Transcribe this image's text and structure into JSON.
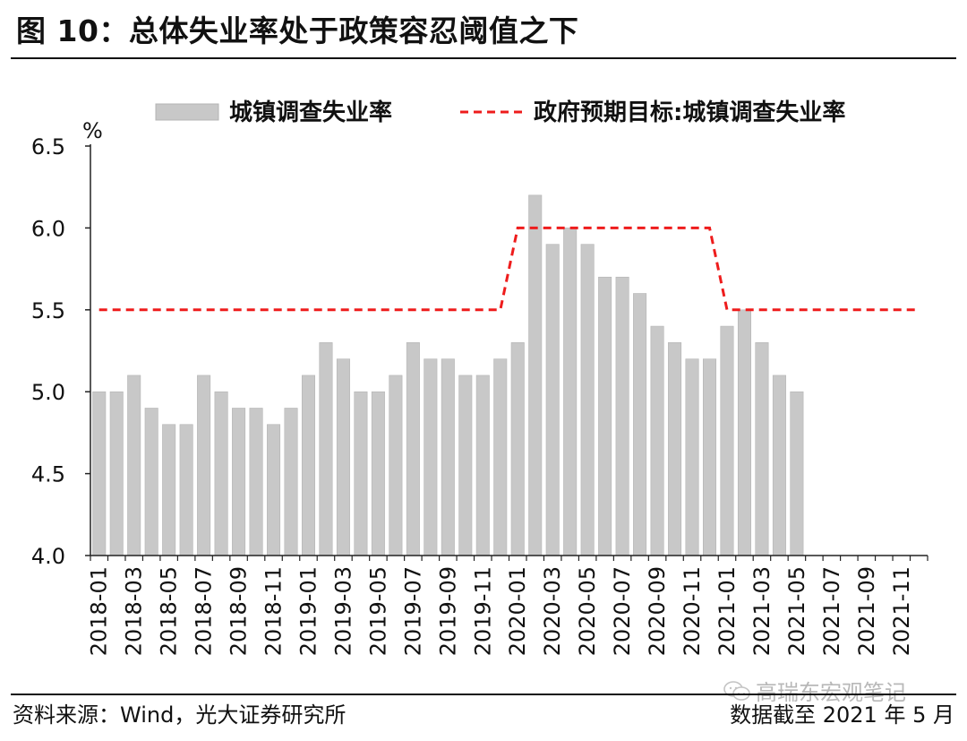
{
  "title": "图 10：总体失业率处于政策容忍阈值之下",
  "source": "资料来源：Wind，光大证券研究所",
  "note": "数据截至 2021 年 5 月",
  "watermark": "高瑞东宏观笔记",
  "colors": {
    "bar": "#c8c8c8",
    "bar_edge": "#b4b4b4",
    "target": "#ee1c1c",
    "axis": "#222222"
  },
  "chart_data": {
    "type": "bar",
    "unit_label": "%",
    "ylim": [
      4.0,
      6.5
    ],
    "yticks": [
      4.0,
      4.5,
      5.0,
      5.5,
      6.0,
      6.5
    ],
    "ytick_labels": [
      "4.0",
      "4.5",
      "5.0",
      "5.5",
      "6.0",
      "6.5"
    ],
    "grid": false,
    "legend_position": "top",
    "categories": [
      "2018-01",
      "2018-02",
      "2018-03",
      "2018-04",
      "2018-05",
      "2018-06",
      "2018-07",
      "2018-08",
      "2018-09",
      "2018-10",
      "2018-11",
      "2018-12",
      "2019-01",
      "2019-02",
      "2019-03",
      "2019-04",
      "2019-05",
      "2019-06",
      "2019-07",
      "2019-08",
      "2019-09",
      "2019-10",
      "2019-11",
      "2019-12",
      "2020-01",
      "2020-02",
      "2020-03",
      "2020-04",
      "2020-05",
      "2020-06",
      "2020-07",
      "2020-08",
      "2020-09",
      "2020-10",
      "2020-11",
      "2020-12",
      "2021-01",
      "2021-02",
      "2021-03",
      "2021-04",
      "2021-05",
      "2021-06",
      "2021-07",
      "2021-08",
      "2021-09",
      "2021-10",
      "2021-11",
      "2021-12"
    ],
    "xtick_labels": [
      "2018-01",
      "2018-03",
      "2018-05",
      "2018-07",
      "2018-09",
      "2018-11",
      "2019-01",
      "2019-03",
      "2019-05",
      "2019-07",
      "2019-09",
      "2019-11",
      "2020-01",
      "2020-03",
      "2020-05",
      "2020-07",
      "2020-09",
      "2020-11",
      "2021-01",
      "2021-03",
      "2021-05",
      "2021-07",
      "2021-09",
      "2021-11"
    ],
    "series": [
      {
        "name": "城镇调查失业率",
        "type": "bar",
        "values": [
          5.0,
          5.0,
          5.1,
          4.9,
          4.8,
          4.8,
          5.1,
          5.0,
          4.9,
          4.9,
          4.8,
          4.9,
          5.1,
          5.3,
          5.2,
          5.0,
          5.0,
          5.1,
          5.3,
          5.2,
          5.2,
          5.1,
          5.1,
          5.2,
          5.3,
          6.2,
          5.9,
          6.0,
          5.9,
          5.7,
          5.7,
          5.6,
          5.4,
          5.3,
          5.2,
          5.2,
          5.4,
          5.5,
          5.3,
          5.1,
          5.0,
          null,
          null,
          null,
          null,
          null,
          null,
          null
        ]
      },
      {
        "name": "政府预期目标:城镇调查失业率",
        "type": "line",
        "style": "dashed",
        "values": [
          5.5,
          5.5,
          5.5,
          5.5,
          5.5,
          5.5,
          5.5,
          5.5,
          5.5,
          5.5,
          5.5,
          5.5,
          5.5,
          5.5,
          5.5,
          5.5,
          5.5,
          5.5,
          5.5,
          5.5,
          5.5,
          5.5,
          5.5,
          5.5,
          6.0,
          6.0,
          6.0,
          6.0,
          6.0,
          6.0,
          6.0,
          6.0,
          6.0,
          6.0,
          6.0,
          6.0,
          5.5,
          5.5,
          5.5,
          5.5,
          5.5,
          5.5,
          5.5,
          5.5,
          5.5,
          5.5,
          5.5,
          5.5
        ]
      }
    ]
  }
}
